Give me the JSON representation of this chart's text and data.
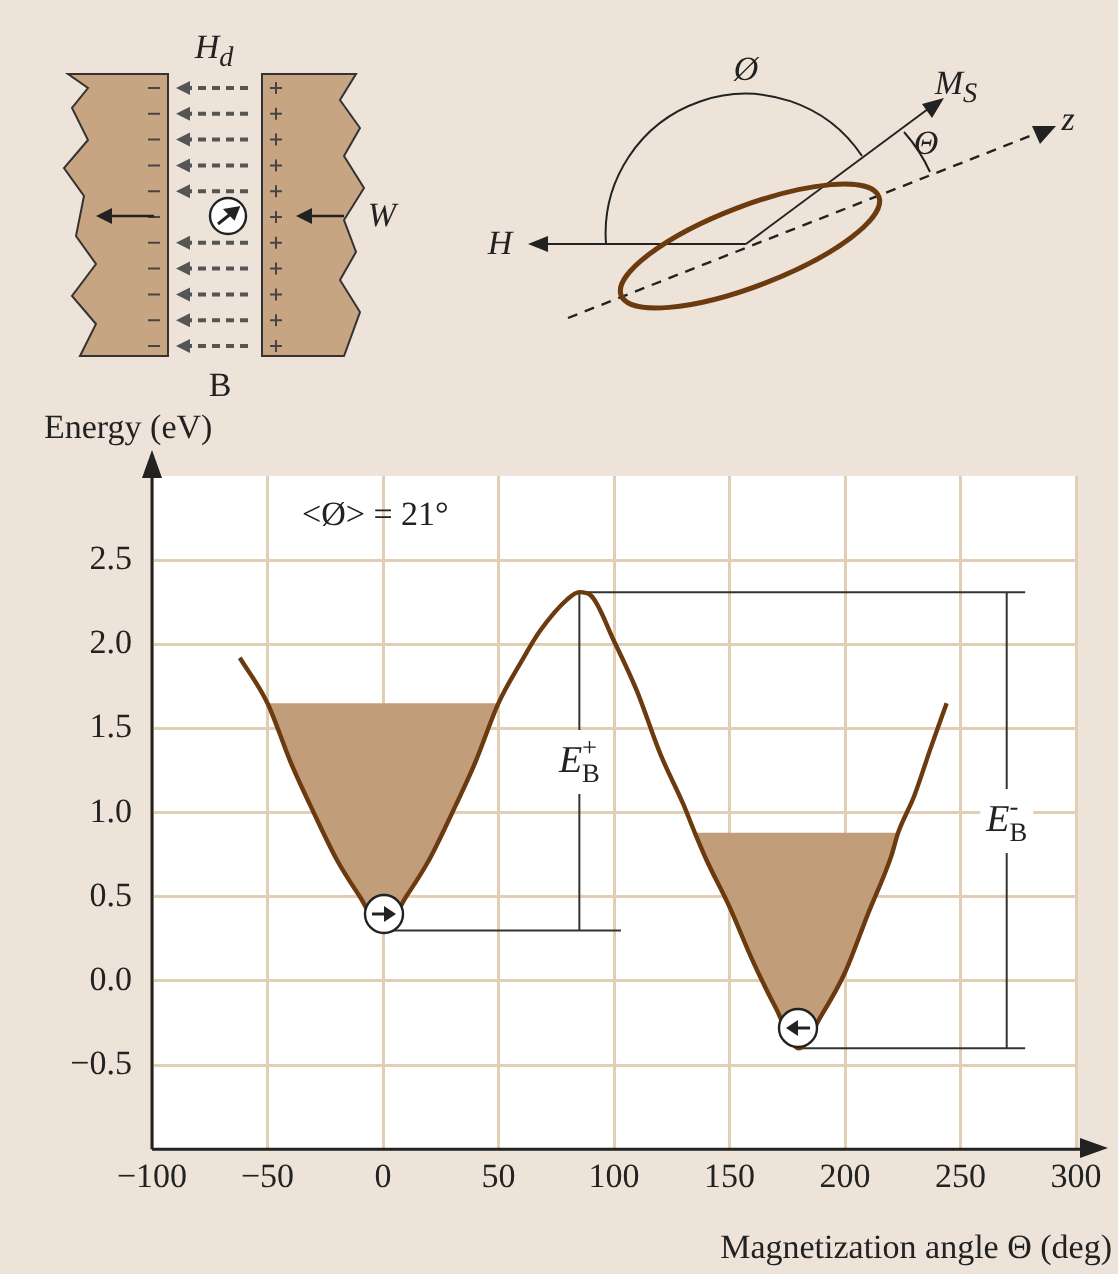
{
  "chart_data": {
    "type": "line",
    "xlabel": "Magnetization angle Θ (deg)",
    "ylabel": "Energy (eV)",
    "xlim": [
      -100,
      300
    ],
    "xticks": [
      {
        "value": -100,
        "label": "−100"
      },
      {
        "value": -50,
        "label": "−50"
      },
      0,
      50,
      100,
      150,
      200,
      250,
      300
    ],
    "ylim": [
      -1,
      3
    ],
    "yticks": [
      {
        "value": -0.5,
        "label": "−0.5"
      },
      {
        "value": 0,
        "label": "0.0"
      },
      0.5,
      {
        "value": 1,
        "label": "1.0"
      },
      1.5,
      {
        "value": 2,
        "label": "2.0"
      },
      2.5
    ],
    "grid": true,
    "tick_labels": "xy",
    "series": [
      {
        "type": "line",
        "color": "#6b3a0f",
        "x": [
          -62,
          -50,
          -40,
          -30,
          -20,
          -10,
          0,
          10,
          20,
          30,
          40,
          50,
          60,
          68,
          80,
          85,
          90,
          100,
          110,
          120,
          130,
          135,
          140,
          150,
          160,
          170,
          180,
          190,
          200,
          210,
          220,
          223,
          230,
          237,
          244
        ],
        "values": [
          1.92,
          1.65,
          1.3,
          1.0,
          0.72,
          0.5,
          0.3,
          0.5,
          0.72,
          1.0,
          1.3,
          1.65,
          1.9,
          2.08,
          2.27,
          2.31,
          2.29,
          2.02,
          1.72,
          1.35,
          1.05,
          0.88,
          0.72,
          0.44,
          0.12,
          -0.16,
          -0.4,
          -0.2,
          0.05,
          0.4,
          0.74,
          0.88,
          1.1,
          1.38,
          1.65
        ]
      },
      {
        "type": "area",
        "color": "#c19d7a",
        "x": [
          -50,
          -40,
          -30,
          -20,
          -10,
          0,
          10,
          20,
          30,
          40,
          50
        ],
        "values": [
          1.65,
          1.3,
          1.0,
          0.72,
          0.5,
          0.3,
          0.5,
          0.72,
          1.0,
          1.3,
          1.65
        ]
      },
      {
        "type": "area",
        "color": "#c19d7a",
        "x": [
          135,
          140,
          150,
          160,
          170,
          180,
          190,
          200,
          210,
          220,
          223
        ],
        "values": [
          0.88,
          0.72,
          0.44,
          0.12,
          -0.16,
          -0.4,
          -0.2,
          0.05,
          0.4,
          0.74,
          0.88
        ]
      },
      {
        "type": "line",
        "color": "#333333",
        "x": [
          85,
          278
        ],
        "values": [
          2.31,
          2.31
        ]
      },
      {
        "type": "line",
        "color": "#333333",
        "x": [
          0,
          103
        ],
        "values": [
          0.3,
          0.3
        ]
      },
      {
        "type": "line",
        "color": "#333333",
        "x": [
          180,
          278
        ],
        "values": [
          -0.4,
          -0.4
        ]
      },
      {
        "type": "line",
        "color": "#333333",
        "x": [
          85,
          85
        ],
        "values": [
          0.3,
          2.31
        ]
      },
      {
        "type": "line",
        "color": "#333333",
        "x": [
          270,
          270
        ],
        "values": [
          -0.4,
          2.31
        ]
      }
    ],
    "annotations": [
      "<Ø> = 21°",
      "H$_{d}$",
      "B",
      "W",
      "Ø",
      "M$_{S}$",
      "Θ",
      "z",
      "H",
      {
        "text": "E$_{B}$$^{+}$",
        "x": 85,
        "y": 1.3
      },
      {
        "text": "E$_{B}$$^{-}$",
        "x": 270,
        "y": 0.95
      }
    ]
  }
}
